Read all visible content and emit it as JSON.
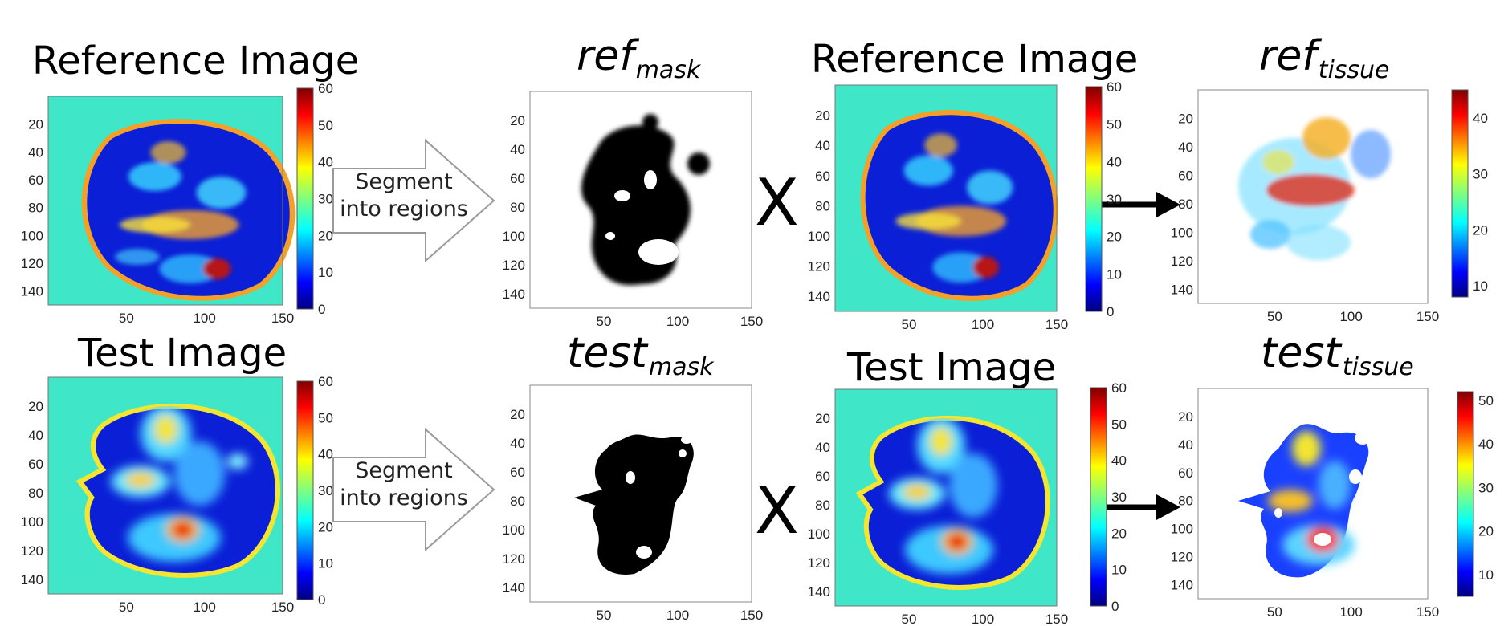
{
  "titles": {
    "ref_image_1": "Reference Image",
    "ref_mask_main": "ref",
    "ref_mask_sub": "mask",
    "ref_image_2": "Reference Image",
    "ref_tissue_main": "ref",
    "ref_tissue_sub": "tissue",
    "test_image_1": "Test Image",
    "test_mask_main": "test",
    "test_mask_sub": "mask",
    "test_image_2": "Test Image",
    "test_tissue_main": "test",
    "test_tissue_sub": "tissue"
  },
  "arrows": {
    "segment_label_line1": "Segment",
    "segment_label_line2": "into regions"
  },
  "operators": {
    "multiply": "X"
  },
  "axes": {
    "x_ticks": [
      "50",
      "100",
      "150"
    ],
    "y_ticks": [
      "20",
      "40",
      "60",
      "80",
      "100",
      "120",
      "140"
    ],
    "colorbar_ticks_60": [
      "0",
      "10",
      "20",
      "30",
      "40",
      "50",
      "60"
    ],
    "colorbar_ticks_tissue_ref": [
      "10",
      "20",
      "30",
      "40"
    ],
    "colorbar_ticks_tissue_test": [
      "10",
      "20",
      "30",
      "40",
      "50"
    ]
  },
  "colors": {
    "background_cyan": "#3fe7c8",
    "tissue_blue": "#0a1fd6",
    "rim_orange": "#f2a02a",
    "hot_red": "#c41616",
    "yellow": "#f3e530",
    "mask_black": "#000000"
  }
}
